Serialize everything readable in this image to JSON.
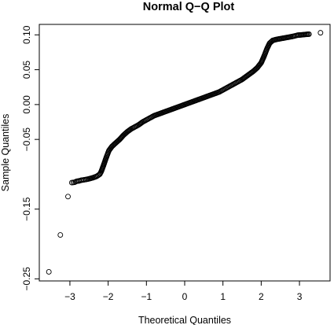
{
  "chart_data": {
    "type": "scatter",
    "title": "Normal Q−Q Plot",
    "xlabel": "Theoretical Quantiles",
    "ylabel": "Sample Quantiles",
    "xlim": [
      -3.8,
      3.8
    ],
    "ylim": [
      -0.253,
      0.115
    ],
    "x_ticks": [
      -3,
      -2,
      -1,
      0,
      1,
      2,
      3
    ],
    "x_tick_labels": [
      "−3",
      "−2",
      "−1",
      "0",
      "1",
      "2",
      "3"
    ],
    "y_ticks": [
      0.1,
      0.05,
      0.0,
      -0.05,
      -0.15,
      -0.25
    ],
    "y_tick_labels": [
      "0.10",
      "0.05",
      "0.00",
      "−0.05",
      "−0.15",
      "−0.25"
    ],
    "grid": false,
    "legend": "none",
    "point_style": "open-circle",
    "series": [
      {
        "points": [
          [
            -3.55,
            -0.24
          ],
          [
            -3.25,
            -0.187
          ],
          [
            -3.05,
            -0.132
          ],
          [
            -2.95,
            -0.112
          ],
          [
            -2.88,
            -0.1115
          ],
          [
            -2.82,
            -0.11
          ],
          [
            -2.76,
            -0.1095
          ],
          [
            -2.7,
            -0.1085
          ],
          [
            -2.64,
            -0.108
          ],
          [
            -2.58,
            -0.1075
          ],
          [
            -2.5,
            -0.1065
          ],
          [
            -2.4,
            -0.105
          ],
          [
            -2.3,
            -0.103
          ],
          [
            -2.22,
            -0.1
          ],
          [
            -2.18,
            -0.096
          ],
          [
            -2.12,
            -0.087
          ],
          [
            -2.05,
            -0.076
          ],
          [
            -1.98,
            -0.066
          ],
          [
            -1.9,
            -0.06
          ],
          [
            -1.8,
            -0.055
          ],
          [
            -1.7,
            -0.05
          ],
          [
            -1.6,
            -0.044
          ],
          [
            -1.5,
            -0.039
          ],
          [
            -1.4,
            -0.035
          ],
          [
            -1.3,
            -0.032
          ],
          [
            -1.2,
            -0.029
          ],
          [
            -1.1,
            -0.025
          ],
          [
            -1.0,
            -0.022
          ],
          [
            -0.9,
            -0.019
          ],
          [
            -0.8,
            -0.016
          ],
          [
            -0.7,
            -0.014
          ],
          [
            -0.6,
            -0.012
          ],
          [
            -0.5,
            -0.01
          ],
          [
            -0.4,
            -0.008
          ],
          [
            -0.3,
            -0.006
          ],
          [
            -0.2,
            -0.004
          ],
          [
            -0.1,
            -0.002
          ],
          [
            0.0,
            0.0
          ],
          [
            0.1,
            0.002
          ],
          [
            0.2,
            0.004
          ],
          [
            0.3,
            0.006
          ],
          [
            0.4,
            0.008
          ],
          [
            0.5,
            0.01
          ],
          [
            0.6,
            0.012
          ],
          [
            0.7,
            0.014
          ],
          [
            0.8,
            0.016
          ],
          [
            0.9,
            0.018
          ],
          [
            1.0,
            0.021
          ],
          [
            1.1,
            0.024
          ],
          [
            1.2,
            0.027
          ],
          [
            1.3,
            0.03
          ],
          [
            1.4,
            0.033
          ],
          [
            1.5,
            0.036
          ],
          [
            1.6,
            0.04
          ],
          [
            1.7,
            0.044
          ],
          [
            1.8,
            0.048
          ],
          [
            1.9,
            0.053
          ],
          [
            2.0,
            0.06
          ],
          [
            2.08,
            0.07
          ],
          [
            2.15,
            0.08
          ],
          [
            2.22,
            0.088
          ],
          [
            2.3,
            0.092
          ],
          [
            2.4,
            0.0935
          ],
          [
            2.5,
            0.0945
          ],
          [
            2.6,
            0.0955
          ],
          [
            2.7,
            0.0965
          ],
          [
            2.8,
            0.0975
          ],
          [
            2.88,
            0.0985
          ],
          [
            2.95,
            0.0995
          ],
          [
            3.05,
            0.1
          ],
          [
            3.25,
            0.101
          ],
          [
            3.55,
            0.103
          ]
        ]
      }
    ]
  }
}
